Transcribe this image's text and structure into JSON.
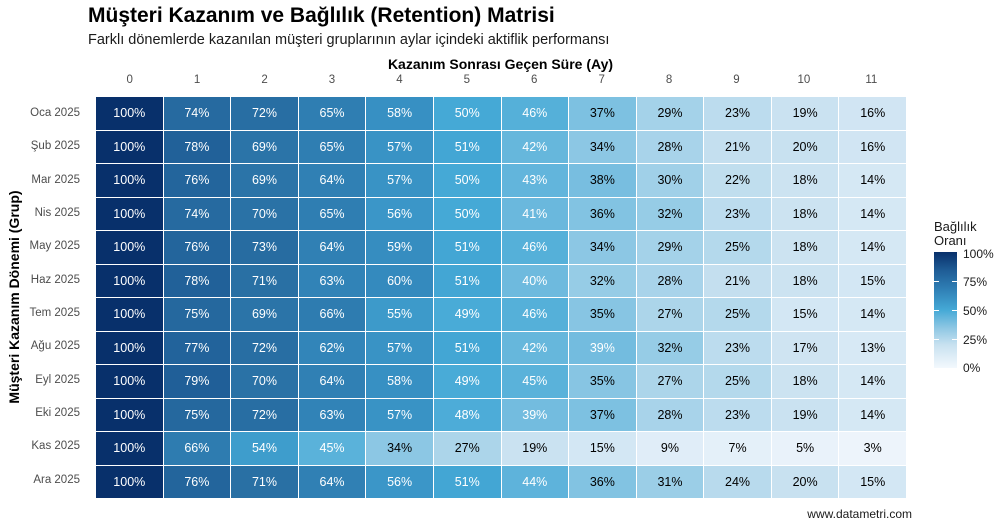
{
  "header": {
    "title": "Müşteri Kazanım ve Bağlılık (Retention) Matrisi",
    "subtitle": "Farklı dönemlerde kazanılan müşteri gruplarının aylar içindeki aktiflik performansı"
  },
  "caption": "www.datametri.com",
  "legend": {
    "title_line1": "Bağlılık",
    "title_line2": "Oranı",
    "labels": [
      "100%",
      "75%",
      "50%",
      "25%",
      "0%"
    ]
  },
  "chart_data": {
    "type": "heatmap",
    "title": "Müşteri Kazanım ve Bağlılık (Retention) Matrisi",
    "subtitle": "Farklı dönemlerde kazanılan müşteri gruplarının aylar içindeki aktiflik performansı",
    "xlabel": "Kazanım Sonrası Geçen Süre (Ay)",
    "ylabel": "Müşteri Kazanım Dönemi (Grup)",
    "x": [
      "0",
      "1",
      "2",
      "3",
      "4",
      "5",
      "6",
      "7",
      "8",
      "9",
      "10",
      "11"
    ],
    "y": [
      "Oca 2025",
      "Şub 2025",
      "Mar 2025",
      "Nis 2025",
      "May 2025",
      "Haz 2025",
      "Tem 2025",
      "Ağu 2025",
      "Eyl 2025",
      "Eki 2025",
      "Kas 2025",
      "Ara 2025"
    ],
    "values": [
      [
        100,
        74,
        72,
        65,
        58,
        50,
        46,
        37,
        29,
        23,
        19,
        16
      ],
      [
        100,
        78,
        69,
        65,
        57,
        51,
        42,
        34,
        28,
        21,
        20,
        16
      ],
      [
        100,
        76,
        69,
        64,
        57,
        50,
        43,
        38,
        30,
        22,
        18,
        14
      ],
      [
        100,
        74,
        70,
        65,
        56,
        50,
        41,
        36,
        32,
        23,
        18,
        14
      ],
      [
        100,
        76,
        73,
        64,
        59,
        51,
        46,
        34,
        29,
        25,
        18,
        14
      ],
      [
        100,
        78,
        71,
        63,
        60,
        51,
        40,
        32,
        28,
        21,
        18,
        15
      ],
      [
        100,
        75,
        69,
        66,
        55,
        49,
        46,
        35,
        27,
        25,
        15,
        14
      ],
      [
        100,
        77,
        72,
        62,
        57,
        51,
        42,
        39,
        32,
        23,
        17,
        13
      ],
      [
        100,
        79,
        70,
        64,
        58,
        49,
        45,
        35,
        27,
        25,
        18,
        14
      ],
      [
        100,
        75,
        72,
        63,
        57,
        48,
        39,
        37,
        28,
        23,
        19,
        14
      ],
      [
        100,
        66,
        54,
        45,
        34,
        27,
        19,
        15,
        9,
        7,
        5,
        3
      ],
      [
        100,
        76,
        71,
        64,
        56,
        51,
        44,
        36,
        31,
        24,
        20,
        15
      ]
    ],
    "value_format": "percent",
    "color_scale": {
      "name": "Blues",
      "low": "#f3f8fd",
      "mid": "#45a9d6",
      "high": "#08306b",
      "range": [
        0,
        100
      ]
    },
    "legend": {
      "title": "Bağlılık Oranı",
      "position": "right",
      "ticks": [
        "0%",
        "25%",
        "50%",
        "75%",
        "100%"
      ]
    },
    "x_axis_position": "top",
    "grid": false
  }
}
